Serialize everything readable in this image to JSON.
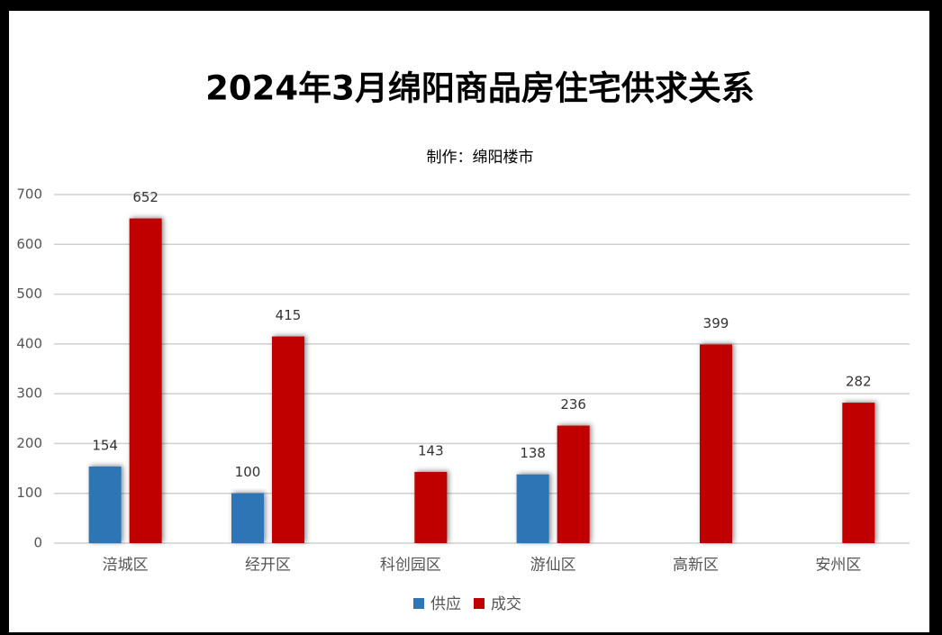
{
  "chart_data": {
    "type": "bar",
    "title": "2024年3月绵阳商品房住宅供求关系",
    "subtitle": "制作：绵阳楼市",
    "categories": [
      "涪城区",
      "经开区",
      "科创园区",
      "游仙区",
      "高新区",
      "安州区"
    ],
    "series": [
      {
        "name": "供应",
        "color": "#2e75b6",
        "values": [
          154,
          100,
          null,
          138,
          null,
          null
        ]
      },
      {
        "name": "成交",
        "color": "#c00000",
        "values": [
          652,
          415,
          143,
          236,
          399,
          282
        ]
      }
    ],
    "ylim": [
      0,
      700
    ],
    "yticks": [
      0,
      100,
      200,
      300,
      400,
      500,
      600,
      700
    ],
    "grid": true,
    "legend": "bottom"
  }
}
